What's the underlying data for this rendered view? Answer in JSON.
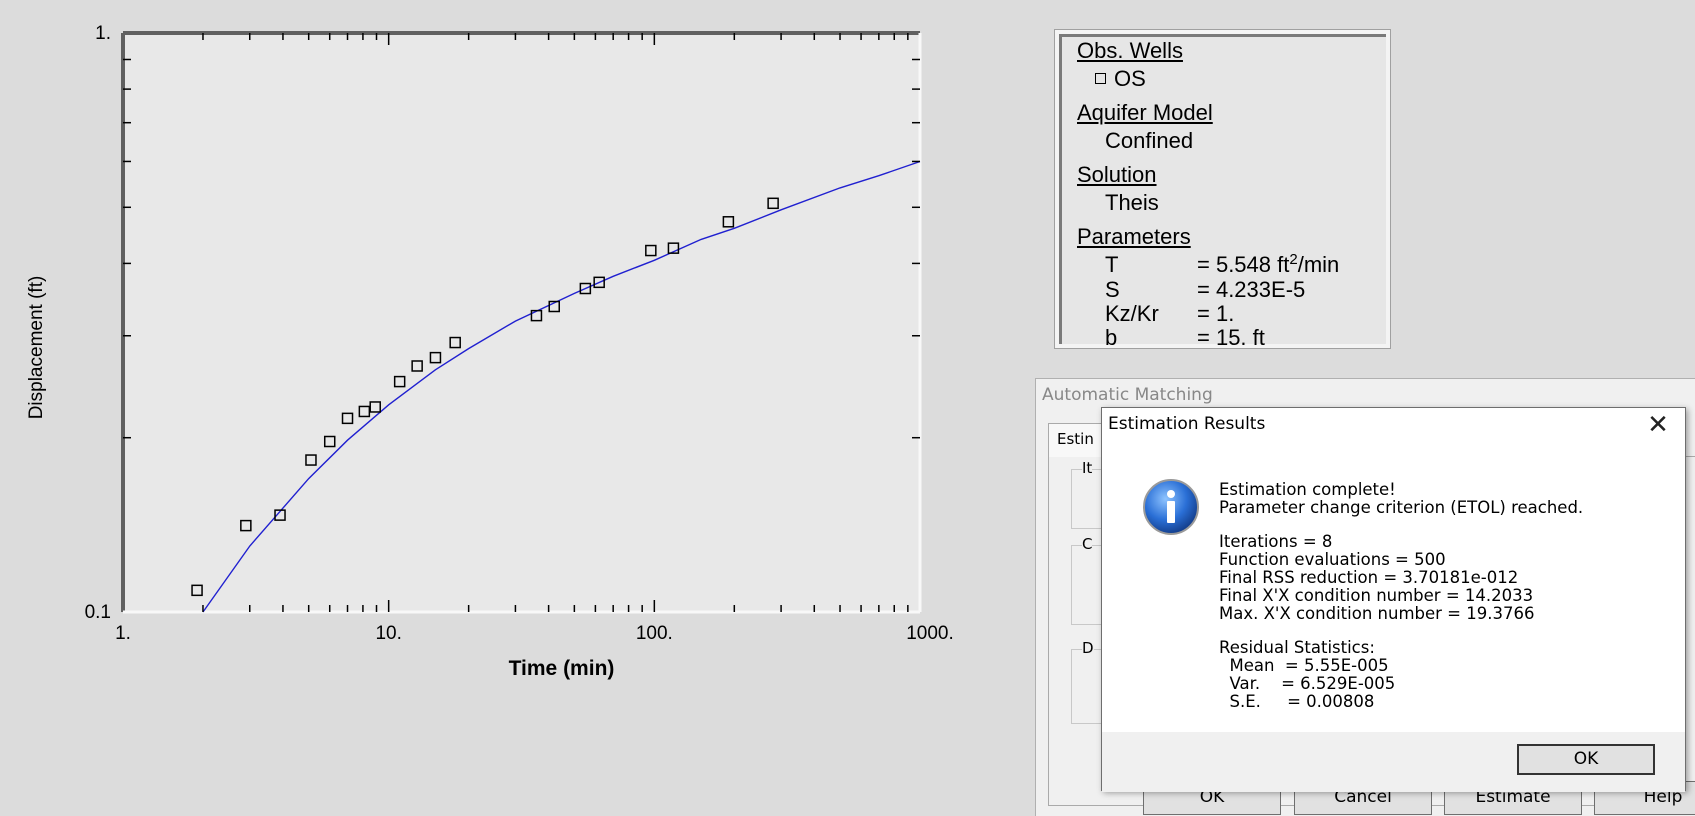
{
  "chart_data": {
    "type": "scatter",
    "x_scale": "log",
    "y_scale": "log",
    "xlim": [
      1,
      1000
    ],
    "ylim": [
      0.1,
      1
    ],
    "xlabel": "Time (min)",
    "ylabel": "Displacement (ft)",
    "x_tick_labels": [
      "1.",
      "10.",
      "100.",
      "1000."
    ],
    "y_tick_labels": [
      "0.1",
      "1."
    ],
    "line_color": "#2020d0",
    "series": [
      {
        "name": "OS",
        "marker": "square",
        "points": [
          [
            1.9,
            0.109
          ],
          [
            2.9,
            0.141
          ],
          [
            3.9,
            0.147
          ],
          [
            5.1,
            0.183
          ],
          [
            6.0,
            0.197
          ],
          [
            7.0,
            0.216
          ],
          [
            8.1,
            0.222
          ],
          [
            8.9,
            0.226
          ],
          [
            11.0,
            0.25
          ],
          [
            12.8,
            0.266
          ],
          [
            15.0,
            0.275
          ],
          [
            17.8,
            0.292
          ],
          [
            36.0,
            0.325
          ],
          [
            42.0,
            0.337
          ],
          [
            55.0,
            0.362
          ],
          [
            62.0,
            0.371
          ],
          [
            97.0,
            0.421
          ],
          [
            118.0,
            0.425
          ],
          [
            190.0,
            0.472
          ],
          [
            280.0,
            0.508
          ]
        ]
      }
    ],
    "fit_curve": [
      [
        2.0,
        0.1
      ],
      [
        3.0,
        0.13
      ],
      [
        5.0,
        0.17
      ],
      [
        7.0,
        0.198
      ],
      [
        10.0,
        0.228
      ],
      [
        15.0,
        0.262
      ],
      [
        20.0,
        0.285
      ],
      [
        30.0,
        0.318
      ],
      [
        50.0,
        0.355
      ],
      [
        70.0,
        0.38
      ],
      [
        100.0,
        0.405
      ],
      [
        150.0,
        0.44
      ],
      [
        200.0,
        0.46
      ],
      [
        300.0,
        0.495
      ],
      [
        500.0,
        0.54
      ],
      [
        700.0,
        0.567
      ],
      [
        1000.0,
        0.6
      ]
    ]
  },
  "legend": {
    "obs_wells_heading": "Obs. Wells",
    "well_name": "OS",
    "aquifer_heading": "Aquifer Model",
    "aquifer_value": "Confined",
    "solution_heading": "Solution",
    "solution_value": "Theis",
    "parameters_heading": "Parameters",
    "params": [
      {
        "key": "T",
        "value": "= 5.548 ft",
        "sup": "2",
        "suffix": "/min"
      },
      {
        "key": "S",
        "value": "= 4.233E-5"
      },
      {
        "key": "Kz/Kr",
        "value": "= 1."
      },
      {
        "key": "b",
        "value": "= 15. ft"
      }
    ]
  },
  "bg_dialog": {
    "title": "Automatic Matching",
    "tab_label": "Estin",
    "group1": "It",
    "group2": "C",
    "group3": "D",
    "buttons": [
      "OK",
      "Cancel",
      "Estimate",
      "Help"
    ]
  },
  "dialog": {
    "title": "Estimation Results",
    "close_glyph": "✕",
    "line1": "Estimation complete!",
    "line2": "Parameter change criterion (ETOL) reached.",
    "iterations": "Iterations = 8",
    "function_evals": "Function evaluations = 500",
    "rss": "Final RSS reduction = 3.70181e-012",
    "cond": "Final X'X condition number = 14.2033",
    "max_cond": "Max. X'X condition number = 19.3766",
    "residual_heading": "Residual Statistics:",
    "mean": "  Mean  = 5.55E-005",
    "var": "  Var.    = 6.529E-005",
    "se": "  S.E.     = 0.00808",
    "ok_label": "OK",
    "icon": "info-icon"
  }
}
